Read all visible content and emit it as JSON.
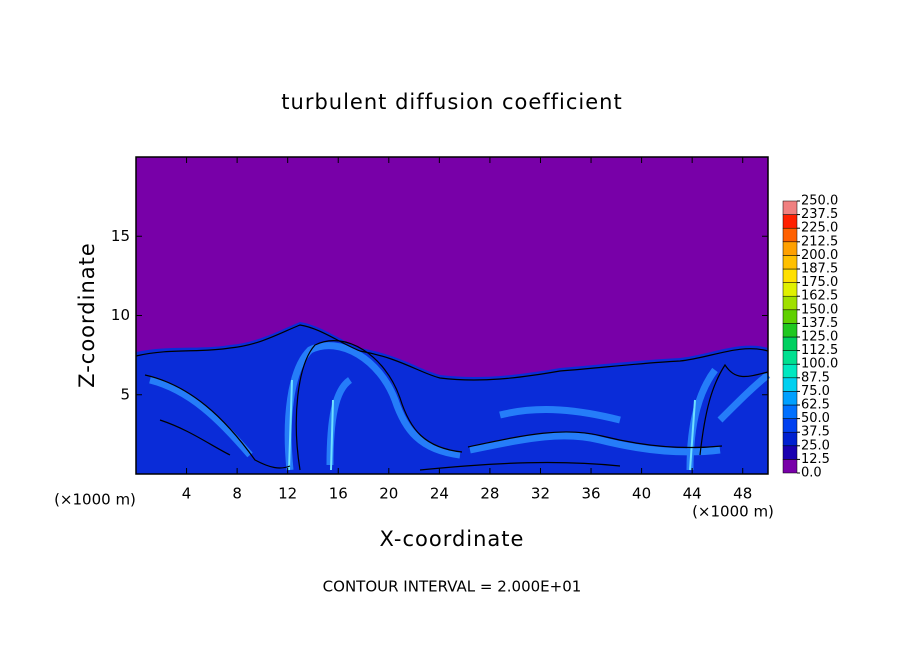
{
  "chart_data": {
    "type": "contour",
    "title": "turbulent diffusion coefficient",
    "x_label": "X-coordinate",
    "y_label": "Z-coordinate",
    "x_unit": "(×1000 m)",
    "annotation": "CONTOUR INTERVAL = 2.000E+01",
    "xlim": [
      0,
      50
    ],
    "xticks": [
      4,
      8,
      12,
      16,
      20,
      24,
      28,
      32,
      36,
      40,
      44,
      48
    ],
    "ylim": [
      0,
      20
    ],
    "yticks": [
      5,
      10,
      15
    ],
    "colorbar": {
      "levels": [
        {
          "value": 0,
          "label": "0.0"
        },
        {
          "value": 12.5,
          "label": "12.5"
        },
        {
          "value": 25,
          "label": "25.0"
        },
        {
          "value": 37.5,
          "label": "37.5"
        },
        {
          "value": 50,
          "label": "50.0"
        },
        {
          "value": 62.5,
          "label": "62.5"
        },
        {
          "value": 75,
          "label": "75.0"
        },
        {
          "value": 87.5,
          "label": "87.5"
        },
        {
          "value": 100,
          "label": "100.0"
        },
        {
          "value": 112.5,
          "label": "112.5"
        },
        {
          "value": 125,
          "label": "125.0"
        },
        {
          "value": 137.5,
          "label": "137.5"
        },
        {
          "value": 150,
          "label": "150.0"
        },
        {
          "value": 162.5,
          "label": "162.5"
        },
        {
          "value": 175,
          "label": "175.0"
        },
        {
          "value": 187.5,
          "label": "187.5"
        },
        {
          "value": 200,
          "label": "200.0"
        },
        {
          "value": 212.5,
          "label": "212.5"
        },
        {
          "value": 225,
          "label": "225.0"
        },
        {
          "value": 237.5,
          "label": "237.5"
        },
        {
          "value": 250,
          "label": "250.0"
        }
      ],
      "colors": [
        "#7800a8",
        "#1a00b0",
        "#0020d0",
        "#0040f0",
        "#0070ff",
        "#00a0ff",
        "#00d0f0",
        "#00e8c0",
        "#00e090",
        "#00d060",
        "#20c820",
        "#60d000",
        "#a0e000",
        "#e0f000",
        "#ffe000",
        "#ffc000",
        "#ffa000",
        "#ff6000",
        "#ff2000",
        "#f08080"
      ]
    }
  }
}
